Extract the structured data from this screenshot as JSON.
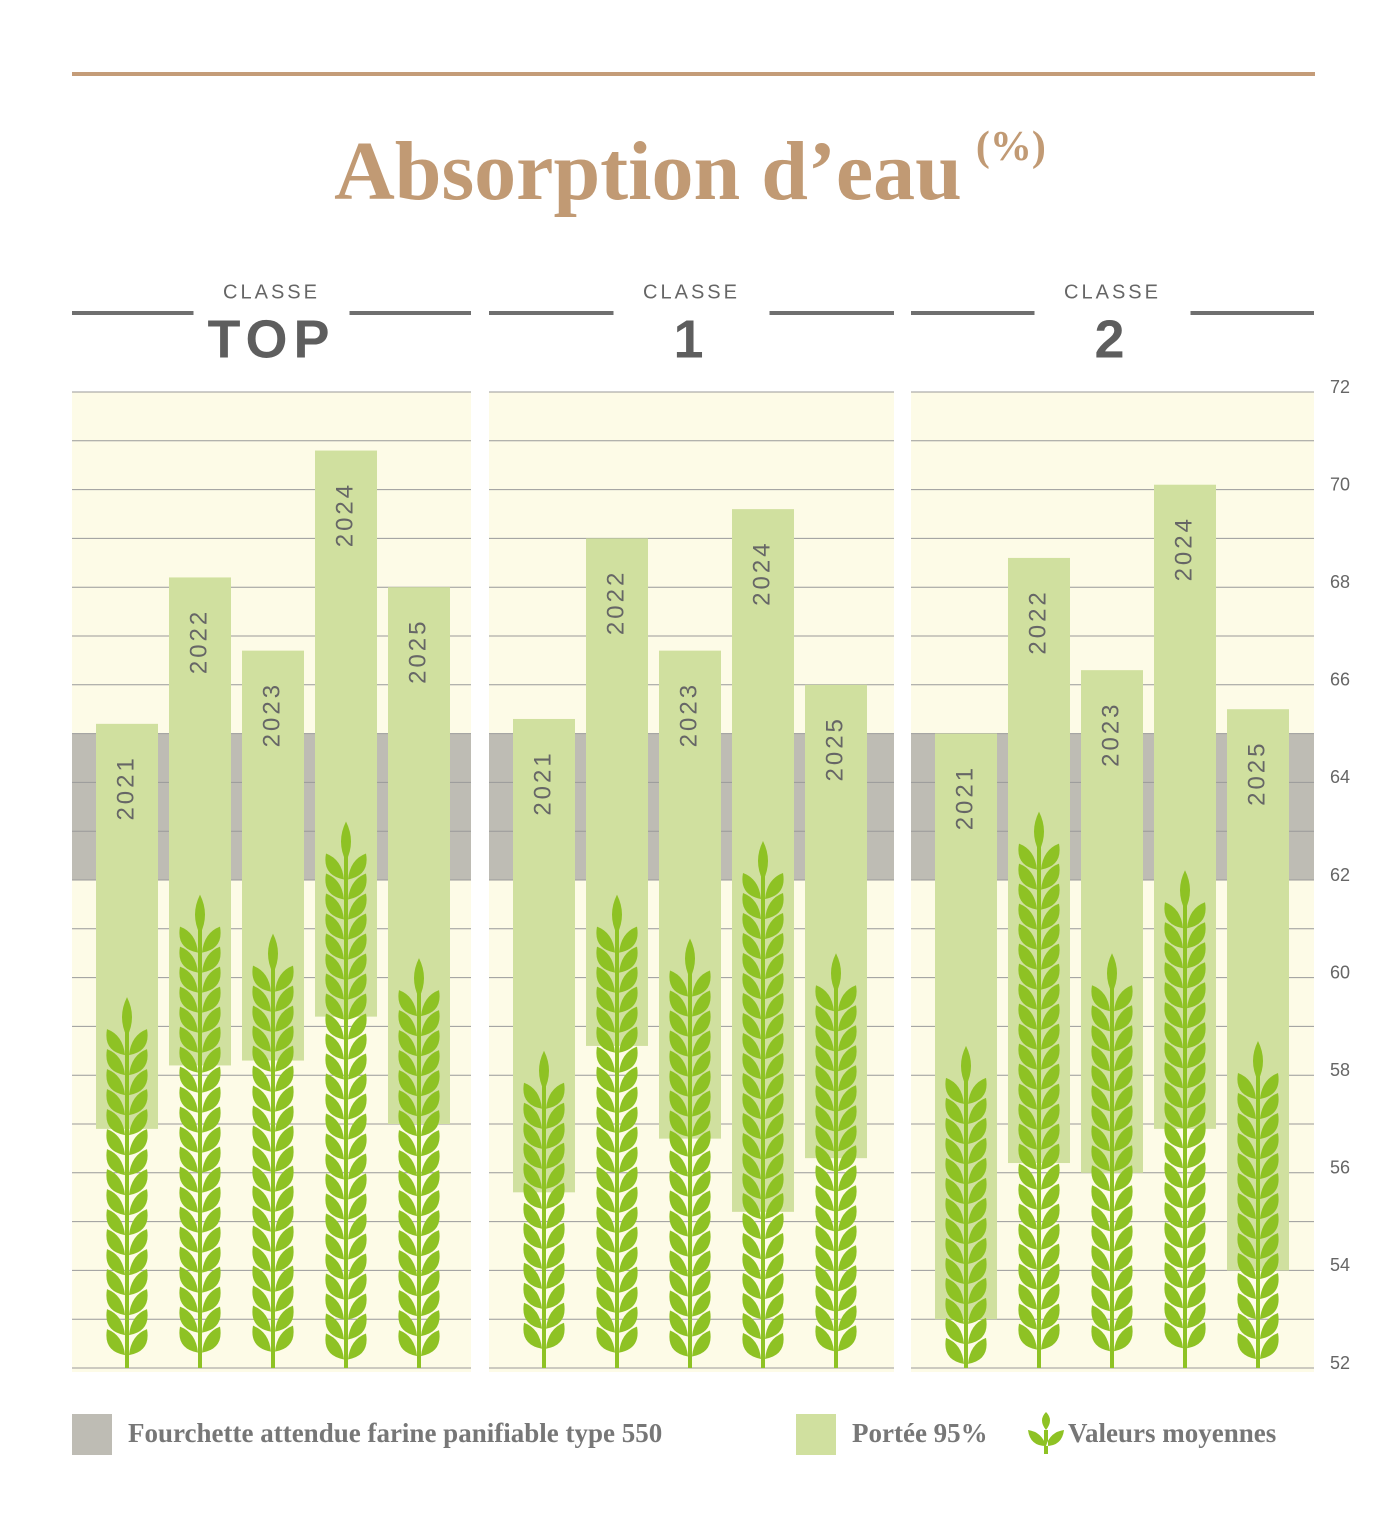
{
  "chart_data": {
    "type": "range-bar",
    "title": "Absorption d’eau",
    "title_unit": "(%)",
    "ylim": [
      52,
      72
    ],
    "yticks": [
      52,
      54,
      56,
      58,
      60,
      62,
      64,
      66,
      68,
      70,
      72
    ],
    "yminorticks": [
      53,
      55,
      57,
      59,
      61,
      63,
      65,
      67,
      69,
      71
    ],
    "grid": true,
    "band": {
      "name": "Fourchette attendue farine panifiable type 550",
      "range": [
        62,
        65
      ],
      "color": "#bebcb4"
    },
    "range_series": {
      "name": "Portée 95%",
      "color": "#d0e09f"
    },
    "mean_series": {
      "name": "Valeurs moyennes",
      "color": "#8ec224"
    },
    "panels": [
      {
        "kicker": "CLASSE",
        "label": "TOP",
        "categories": [
          "2021",
          "2022",
          "2023",
          "2024",
          "2025"
        ],
        "low": [
          56.9,
          58.2,
          58.3,
          59.2,
          57.0
        ],
        "high": [
          65.2,
          68.2,
          66.7,
          70.8,
          68.0
        ],
        "mean": [
          59.6,
          61.7,
          60.9,
          63.2,
          60.4
        ]
      },
      {
        "kicker": "CLASSE",
        "label": "1",
        "categories": [
          "2021",
          "2022",
          "2023",
          "2024",
          "2025"
        ],
        "low": [
          55.6,
          58.6,
          56.7,
          55.2,
          56.3
        ],
        "high": [
          65.3,
          69.0,
          66.7,
          69.6,
          66.0
        ],
        "mean": [
          58.5,
          61.7,
          60.8,
          62.8,
          60.5
        ]
      },
      {
        "kicker": "CLASSE",
        "label": "2",
        "categories": [
          "2021",
          "2022",
          "2023",
          "2024",
          "2025"
        ],
        "low": [
          53.0,
          56.2,
          56.0,
          56.9,
          54.0
        ],
        "high": [
          65.0,
          68.6,
          66.3,
          70.1,
          65.5
        ],
        "mean": [
          58.6,
          63.4,
          60.5,
          62.2,
          58.7
        ]
      }
    ]
  }
}
